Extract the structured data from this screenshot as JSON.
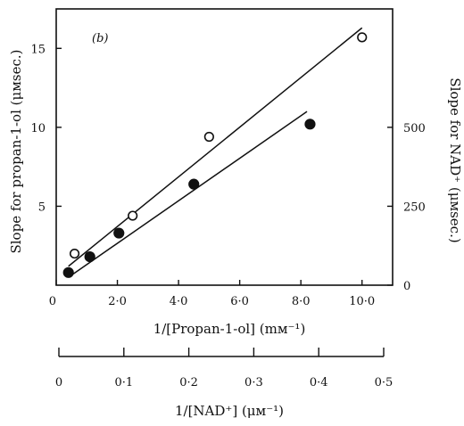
{
  "chart_data": {
    "type": "scatter",
    "panel_label": "(b)",
    "x_axis_bottom": {
      "label": "1/[Propan-1-ol] (mм⁻¹)",
      "range": [
        0,
        11
      ],
      "ticks": [
        0,
        2,
        4,
        6,
        8,
        10
      ],
      "tick_labels": [
        "0",
        "2·0",
        "4·0",
        "6·0",
        "8·0",
        "10·0"
      ]
    },
    "x_axis_secondary": {
      "label": "1/[NAD⁺] (μм⁻¹)",
      "range": [
        0,
        0.55
      ],
      "ticks": [
        0,
        0.1,
        0.2,
        0.3,
        0.4,
        0.5
      ],
      "tick_labels": [
        "0",
        "0·1",
        "0·2",
        "0·3",
        "0·4",
        "0·5"
      ]
    },
    "y_axis_left": {
      "label": "Slope for propan-1-ol (μмsec.)",
      "range": [
        0,
        17.5
      ],
      "ticks": [
        5,
        10,
        15
      ],
      "tick_labels": [
        "5",
        "10",
        "15"
      ]
    },
    "y_axis_right": {
      "label": "Slope for NAD⁺ (μмsec.)",
      "range": [
        0,
        875
      ],
      "ticks": [
        0,
        250,
        500
      ],
      "tick_labels": [
        "0",
        "250",
        "500"
      ]
    },
    "series": [
      {
        "marker": "open-circle",
        "x": [
          0.6,
          2.5,
          5.0,
          10.0
        ],
        "y": [
          2.0,
          4.4,
          9.4,
          15.7
        ],
        "fit_line": [
          [
            0.4,
            1.2
          ],
          [
            10.0,
            16.3
          ]
        ]
      },
      {
        "marker": "filled-circle",
        "x": [
          0.4,
          1.1,
          2.05,
          4.5,
          8.3
        ],
        "y": [
          0.8,
          1.8,
          3.3,
          6.4,
          10.2
        ],
        "fit_line": [
          [
            0.4,
            0.5
          ],
          [
            8.2,
            11.0
          ]
        ]
      }
    ],
    "grid": false
  }
}
